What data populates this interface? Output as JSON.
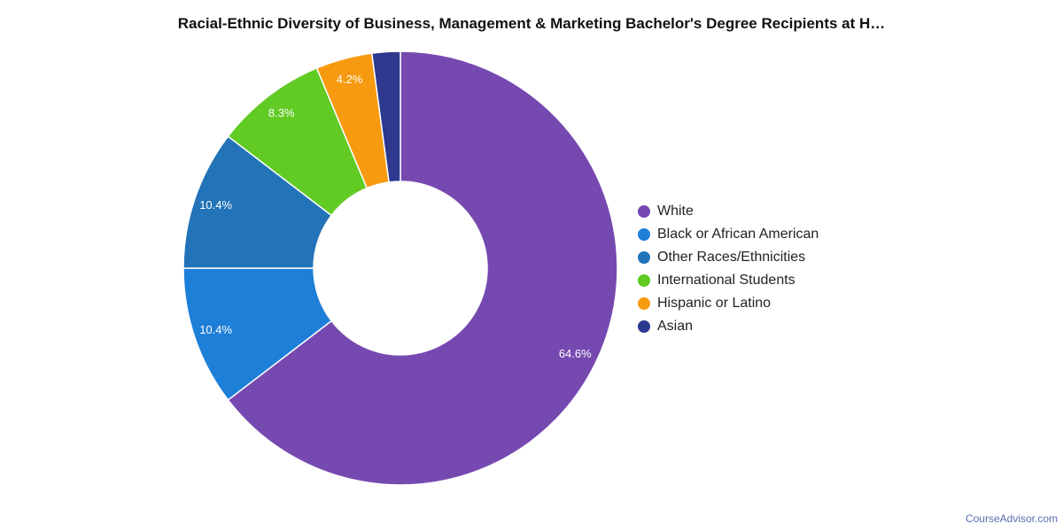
{
  "chart_data": {
    "type": "pie",
    "variant": "donut",
    "title": "Racial-Ethnic Diversity of Business, Management & Marketing Bachelor's Degree Recipients at H…",
    "legend_position": "right",
    "slices": [
      {
        "name": "White",
        "value": 64.6,
        "label": "64.6%",
        "color": "#7649b0"
      },
      {
        "name": "Black or African American",
        "value": 10.4,
        "label": "10.4%",
        "color": "#1e7fd9"
      },
      {
        "name": "Other Races/Ethnicities",
        "value": 10.4,
        "label": "10.4%",
        "color": "#2273b8"
      },
      {
        "name": "International Students",
        "value": 8.3,
        "label": "8.3%",
        "color": "#61cb24"
      },
      {
        "name": "Hispanic or Latino",
        "value": 4.2,
        "label": "4.2%",
        "color": "#f79a0f"
      },
      {
        "name": "Asian",
        "value": 2.1,
        "label": "",
        "color": "#2d388f"
      }
    ]
  },
  "footer": {
    "credit": "CourseAdvisor.com"
  }
}
